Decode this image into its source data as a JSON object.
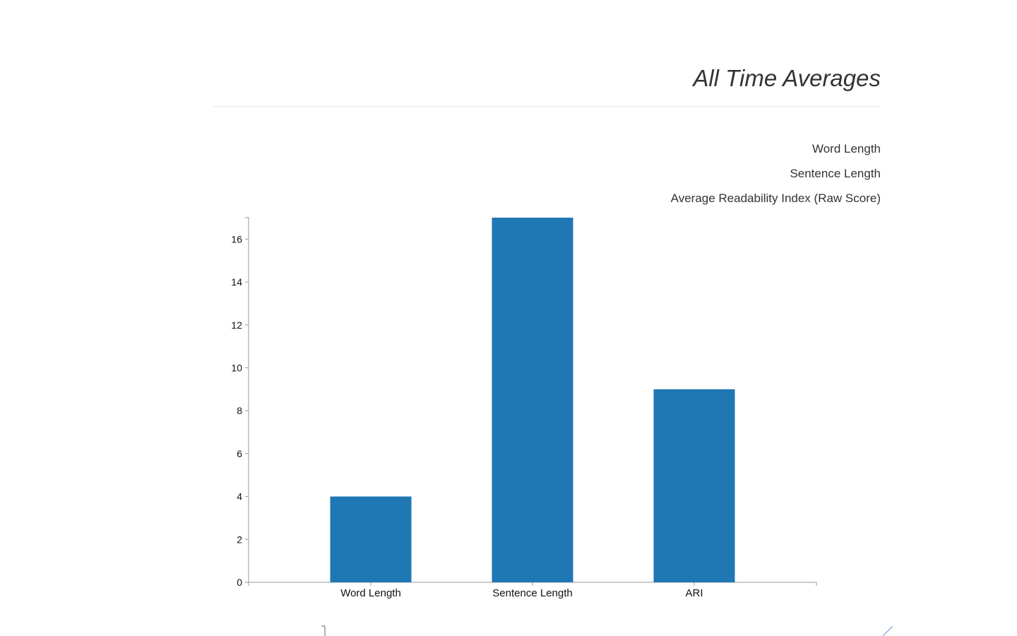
{
  "header": {
    "title": "All Time Averages"
  },
  "metrics": {
    "items": [
      "Word Length",
      "Sentence Length",
      "Average Readability Index (Raw Score)"
    ]
  },
  "colors": {
    "bar": "#1f77b4",
    "axis": "#999999",
    "text": "#333333"
  },
  "chart_data": {
    "type": "bar",
    "categories": [
      "Word Length",
      "Sentence Length",
      "ARI"
    ],
    "values": [
      4,
      17,
      9
    ],
    "ylim": [
      0,
      17
    ],
    "yticks": [
      0,
      2,
      4,
      6,
      8,
      10,
      12,
      14,
      16
    ],
    "title": "",
    "xlabel": "",
    "ylabel": "",
    "grid": false
  }
}
